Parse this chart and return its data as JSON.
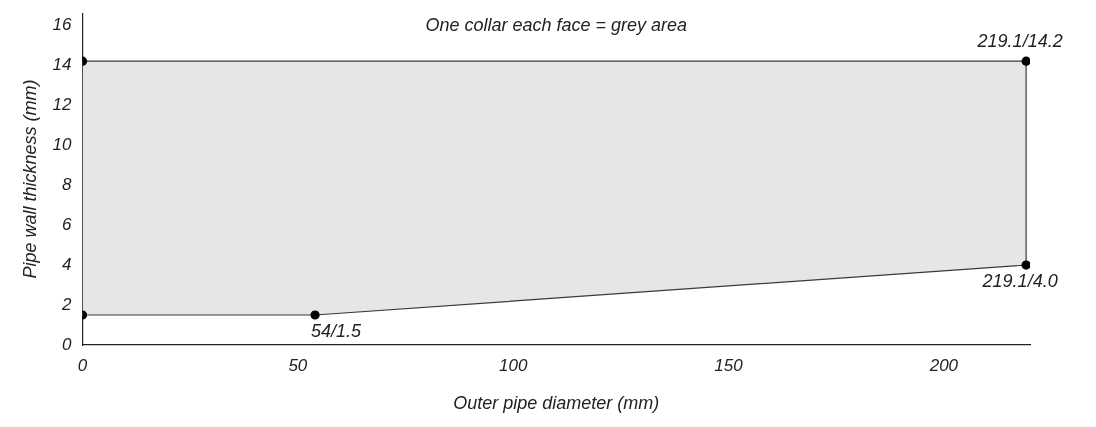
{
  "chart_data": {
    "type": "area",
    "title": "One collar each face = grey area",
    "xlabel": "Outer pipe diameter (mm)",
    "ylabel": "Pipe wall thickness (mm)",
    "xlim": [
      0,
      220
    ],
    "xticks": [
      0,
      50,
      100,
      150,
      200
    ],
    "ylim": [
      0,
      16.6
    ],
    "yticks": [
      0,
      2,
      4,
      6,
      8,
      10,
      12,
      14,
      16
    ],
    "grid": false,
    "legend": false,
    "marker": "circle",
    "series": [
      {
        "color": "#e6e6e6",
        "x": [
          0,
          54,
          219.1,
          219.1,
          0
        ],
        "values": [
          1.5,
          1.5,
          4.0,
          14.2,
          14.2
        ],
        "value_labels": [
          null,
          "54/1.5",
          "219.1/4.0",
          "219.1/14.2",
          null
        ]
      }
    ]
  }
}
